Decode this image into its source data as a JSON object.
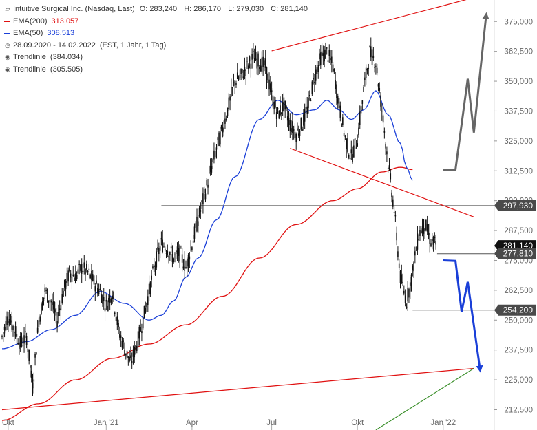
{
  "legend": {
    "title": "Intuitive Surgical Inc. (Nasdaq, Last)",
    "ohlc": {
      "open": "O: 283,240",
      "high": "H: 286,170",
      "low": "L: 279,030",
      "close": "C: 281,140"
    },
    "ema200": {
      "label": "EMA(200)",
      "value": "313,057",
      "color": "#e01010"
    },
    "ema50": {
      "label": "EMA(50)",
      "value": "308,513",
      "color": "#1a3fd8"
    },
    "range": {
      "dates": "28.09.2020 - 14.02.2022",
      "info": "(EST, 1 Jahr, 1 Tag)",
      "icon": "clock-icon"
    },
    "trend1": {
      "label": "Trendlinie",
      "value": "(384.034)",
      "icon": "target-icon"
    },
    "trend2": {
      "label": "Trendlinie",
      "value": "(305.505)",
      "icon": "target-icon"
    }
  },
  "chart_data": {
    "type": "candlestick",
    "x_ticks": [
      "Okt",
      "Jan '21",
      "Apr",
      "Jul",
      "Okt",
      "Jan '22"
    ],
    "y_ticks": [
      "375,000",
      "362,500",
      "350,000",
      "337,500",
      "325,000",
      "312,500",
      "300,000",
      "287,500",
      "275,000",
      "262,500",
      "250,000",
      "237,500",
      "225,000",
      "212,500"
    ],
    "ylim": [
      204,
      384
    ],
    "axis_side": "right",
    "price_tags": [
      {
        "value": 297.93,
        "label": "297,930",
        "style": "light"
      },
      {
        "value": 281.14,
        "label": "281,140",
        "style": "dark"
      },
      {
        "value": 277.81,
        "label": "277,810",
        "style": "light"
      },
      {
        "value": 254.2,
        "label": "254,200",
        "style": "light"
      }
    ],
    "price_series_week": [
      [
        0,
        243
      ],
      [
        1,
        252
      ],
      [
        2,
        246
      ],
      [
        3,
        240
      ],
      [
        4,
        243
      ],
      [
        5,
        222
      ],
      [
        6,
        250
      ],
      [
        7,
        262
      ],
      [
        8,
        258
      ],
      [
        9,
        250
      ],
      [
        10,
        262
      ],
      [
        11,
        270
      ],
      [
        12,
        268
      ],
      [
        13,
        272
      ],
      [
        14,
        270
      ],
      [
        15,
        266
      ],
      [
        16,
        262
      ],
      [
        17,
        256
      ],
      [
        18,
        262
      ],
      [
        19,
        246
      ],
      [
        20,
        238
      ],
      [
        21,
        232
      ],
      [
        22,
        240
      ],
      [
        23,
        250
      ],
      [
        24,
        262
      ],
      [
        25,
        274
      ],
      [
        26,
        282
      ],
      [
        27,
        280
      ],
      [
        28,
        276
      ],
      [
        29,
        278
      ],
      [
        30,
        272
      ],
      [
        31,
        282
      ],
      [
        32,
        292
      ],
      [
        33,
        302
      ],
      [
        34,
        312
      ],
      [
        35,
        322
      ],
      [
        36,
        330
      ],
      [
        37,
        340
      ],
      [
        38,
        350
      ],
      [
        39,
        352
      ],
      [
        40,
        356
      ],
      [
        41,
        360
      ],
      [
        42,
        358
      ],
      [
        43,
        356
      ],
      [
        44,
        344
      ],
      [
        45,
        336
      ],
      [
        46,
        340
      ],
      [
        47,
        332
      ],
      [
        48,
        328
      ],
      [
        49,
        332
      ],
      [
        50,
        340
      ],
      [
        51,
        352
      ],
      [
        52,
        360
      ],
      [
        53,
        362
      ],
      [
        54,
        356
      ],
      [
        55,
        340
      ],
      [
        56,
        326
      ],
      [
        57,
        318
      ],
      [
        58,
        326
      ],
      [
        59,
        346
      ],
      [
        60,
        362
      ],
      [
        61,
        358
      ],
      [
        62,
        338
      ],
      [
        63,
        316
      ],
      [
        64,
        296
      ],
      [
        65,
        268
      ],
      [
        66,
        258
      ],
      [
        67,
        270
      ],
      [
        68,
        286
      ],
      [
        69,
        290
      ],
      [
        70,
        283
      ],
      [
        71,
        281
      ]
    ],
    "ema50_series": [
      [
        0,
        238
      ],
      [
        4,
        241
      ],
      [
        8,
        246
      ],
      [
        12,
        252
      ],
      [
        16,
        262
      ],
      [
        20,
        257
      ],
      [
        24,
        250
      ],
      [
        26,
        252
      ],
      [
        28,
        258
      ],
      [
        30,
        268
      ],
      [
        32,
        276
      ],
      [
        35,
        292
      ],
      [
        38,
        310
      ],
      [
        42,
        334
      ],
      [
        45,
        342
      ],
      [
        48,
        336
      ],
      [
        51,
        338
      ],
      [
        53,
        342
      ],
      [
        55,
        338
      ],
      [
        57,
        334
      ],
      [
        59,
        338
      ],
      [
        61,
        346
      ],
      [
        63,
        336
      ],
      [
        65,
        324
      ],
      [
        66,
        314
      ],
      [
        67,
        308.5
      ]
    ],
    "ema200_series": [
      [
        0,
        208
      ],
      [
        6,
        215
      ],
      [
        12,
        225
      ],
      [
        18,
        234
      ],
      [
        24,
        240
      ],
      [
        30,
        248
      ],
      [
        36,
        260
      ],
      [
        42,
        276
      ],
      [
        48,
        290
      ],
      [
        54,
        300
      ],
      [
        58,
        305
      ],
      [
        62,
        312
      ],
      [
        65,
        314
      ],
      [
        67,
        313
      ]
    ],
    "trendlines": [
      {
        "color": "#e01010",
        "x0": 44,
        "y0": 362.7,
        "x1": 77,
        "y1": 385
      },
      {
        "color": "#e01010",
        "x0": 47,
        "y0": 321.9,
        "x1": 77,
        "y1": 293.2
      },
      {
        "color": "#e01010",
        "x0": 0,
        "y0": 212.5,
        "x1": 77,
        "y1": 229.8
      },
      {
        "color": "#3a8f2a",
        "x0": 61,
        "y0": 204,
        "x1": 77,
        "y1": 229.8
      }
    ],
    "levels": [
      {
        "value": 297.93,
        "x_start": 26
      },
      {
        "value": 277.81,
        "x_start": 71
      },
      {
        "value": 254.2,
        "x_start": 67
      }
    ],
    "scenario_up": [
      [
        72,
        312.8
      ],
      [
        74,
        313
      ],
      [
        76,
        351
      ],
      [
        77,
        328.5
      ],
      [
        79,
        377.5
      ]
    ],
    "scenario_down": [
      [
        72,
        275
      ],
      [
        74,
        274.8
      ],
      [
        75,
        253.5
      ],
      [
        76,
        266
      ],
      [
        78,
        229.5
      ]
    ]
  }
}
